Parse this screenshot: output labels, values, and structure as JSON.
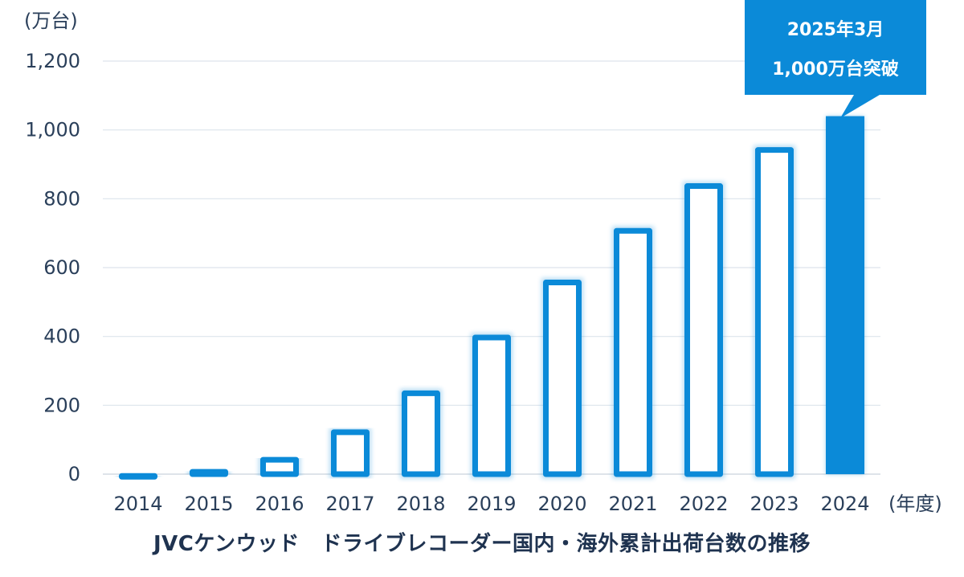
{
  "chart_data": {
    "type": "bar",
    "categories": [
      "2014",
      "2015",
      "2016",
      "2017",
      "2018",
      "2019",
      "2020",
      "2021",
      "2022",
      "2023",
      "2024"
    ],
    "values": [
      3,
      15,
      50,
      130,
      243,
      405,
      565,
      715,
      845,
      950,
      1040
    ],
    "highlight_index": 10,
    "y_unit": "(万台)",
    "x_unit": "(年度)",
    "yticks": [
      0,
      200,
      400,
      600,
      800,
      1000,
      1200
    ],
    "ytick_labels": [
      "0",
      "200",
      "400",
      "600",
      "800",
      "1,000",
      "1,200"
    ],
    "ylim": [
      0,
      1200
    ],
    "grid": true,
    "title": "JVCケンウッド　ドライブレコーダー国内・海外累計出荷台数の推移",
    "callout": {
      "line1": "2025年3月",
      "line2": "1,000万台突破"
    },
    "colors": {
      "bar": "#0b8ad8",
      "grid": "#dde4ec",
      "text": "#2a3f5a",
      "callout": "#0b8ad8"
    }
  }
}
